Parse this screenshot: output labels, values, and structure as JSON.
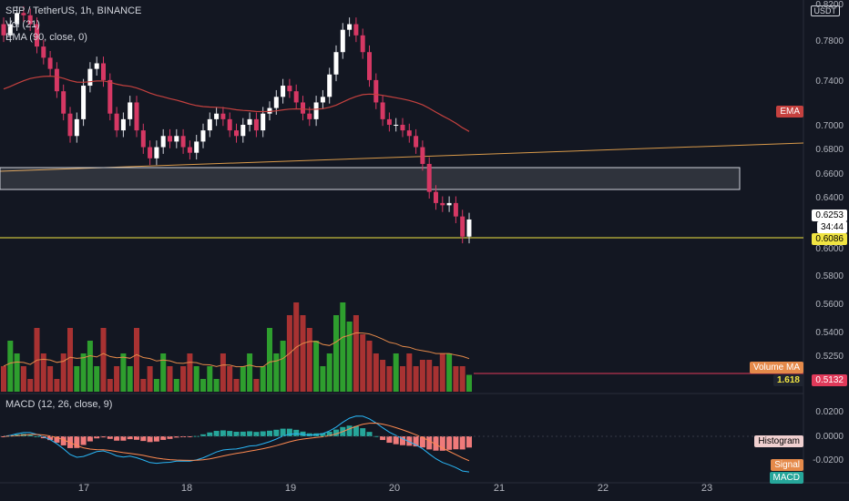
{
  "header": {
    "symbol": "SFP / TetherUS, 1h, BINANCE",
    "indicator_vol": "Vol (21)",
    "indicator_ema": "EMA (90, close, 0)",
    "unit": "USDT"
  },
  "price_axis": [
    "0.8200",
    "0.7800",
    "0.7400",
    "0.7000",
    "0.6800",
    "0.6600",
    "0.6400",
    "0.6000",
    "0.5800",
    "0.5600",
    "0.5400",
    "0.5250"
  ],
  "price_tags": {
    "last": "0.6253",
    "countdown": "34:44",
    "line": "0.6086",
    "ema_label": "EMA",
    "vol_label": "Volume MA",
    "vol_value": "1.618",
    "vol_value2": "0.5132"
  },
  "macd": {
    "title": "MACD (12, 26, close, 9)",
    "axis": [
      "0.0200",
      "0.0000",
      "-0.0200"
    ],
    "histogram_label": "Histogram",
    "signal_label": "Signal",
    "macd_label": "MACD"
  },
  "time_axis": [
    "17",
    "18",
    "19",
    "20",
    "21",
    "22",
    "23"
  ],
  "colors": {
    "bull": "#26a69a",
    "bear": "#ef5350",
    "volBull": "#2e9e2e",
    "volBear": "#a83232",
    "ema": "#c5413f",
    "trend": "#d99a4a",
    "support": "#f0e442"
  },
  "chart_data": {
    "type": "candlestick",
    "closes": [
      0.79,
      0.8,
      0.81,
      0.808,
      0.8,
      0.78,
      0.77,
      0.76,
      0.74,
      0.72,
      0.7,
      0.715,
      0.745,
      0.76,
      0.765,
      0.75,
      0.72,
      0.705,
      0.715,
      0.73,
      0.705,
      0.69,
      0.68,
      0.69,
      0.7,
      0.695,
      0.7,
      0.69,
      0.685,
      0.695,
      0.705,
      0.715,
      0.72,
      0.715,
      0.705,
      0.7,
      0.71,
      0.715,
      0.705,
      0.72,
      0.725,
      0.735,
      0.745,
      0.74,
      0.73,
      0.72,
      0.715,
      0.73,
      0.735,
      0.755,
      0.775,
      0.795,
      0.8,
      0.79,
      0.775,
      0.75,
      0.73,
      0.715,
      0.71,
      0.71,
      0.705,
      0.7,
      0.69,
      0.675,
      0.65,
      0.64,
      0.638,
      0.64,
      0.628,
      0.61,
      0.6253
    ],
    "volumes": [
      0.52,
      0.54,
      0.53,
      0.52,
      0.51,
      0.55,
      0.53,
      0.52,
      0.51,
      0.53,
      0.55,
      0.52,
      0.53,
      0.54,
      0.52,
      0.55,
      0.51,
      0.52,
      0.53,
      0.52,
      0.55,
      0.51,
      0.52,
      0.51,
      0.53,
      0.52,
      0.51,
      0.52,
      0.53,
      0.52,
      0.51,
      0.52,
      0.51,
      0.53,
      0.52,
      0.51,
      0.52,
      0.53,
      0.51,
      0.52,
      0.55,
      0.53,
      0.54,
      0.56,
      0.57,
      0.56,
      0.55,
      0.54,
      0.52,
      0.53,
      0.56,
      0.57,
      0.555,
      0.56,
      0.545,
      0.54,
      0.53,
      0.525,
      0.52,
      0.53,
      0.52,
      0.53,
      0.52,
      0.525,
      0.525,
      0.52,
      0.53,
      0.53,
      0.52,
      0.52,
      0.5132
    ]
  }
}
